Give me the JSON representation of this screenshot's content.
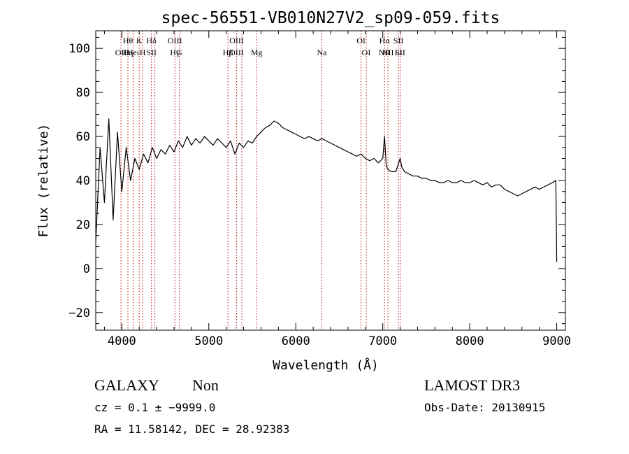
{
  "chart_data": {
    "type": "line",
    "title": "spec-56551-VB010N27V2_sp09-059.fits",
    "xlabel": "Wavelength (Å)",
    "ylabel": "Flux (relative)",
    "xlim": [
      3700,
      9100
    ],
    "ylim": [
      -28,
      108
    ],
    "xticks": [
      4000,
      5000,
      6000,
      7000,
      8000,
      9000
    ],
    "yticks": [
      -20,
      0,
      20,
      40,
      60,
      80,
      100
    ],
    "grid": false,
    "series": [
      {
        "name": "flux",
        "x": [
          3700,
          3750,
          3800,
          3850,
          3900,
          3950,
          4000,
          4050,
          4100,
          4150,
          4200,
          4250,
          4300,
          4350,
          4400,
          4450,
          4500,
          4550,
          4600,
          4650,
          4700,
          4750,
          4800,
          4850,
          4900,
          4950,
          5000,
          5050,
          5100,
          5150,
          5200,
          5250,
          5300,
          5350,
          5400,
          5450,
          5500,
          5550,
          5600,
          5650,
          5700,
          5750,
          5800,
          5850,
          5900,
          5950,
          6000,
          6050,
          6100,
          6150,
          6200,
          6250,
          6300,
          6350,
          6400,
          6450,
          6500,
          6550,
          6600,
          6650,
          6700,
          6750,
          6800,
          6850,
          6900,
          6950,
          7000,
          7020,
          7040,
          7060,
          7100,
          7150,
          7200,
          7220,
          7250,
          7300,
          7350,
          7400,
          7450,
          7500,
          7550,
          7600,
          7650,
          7700,
          7750,
          7800,
          7850,
          7900,
          7950,
          8000,
          8050,
          8100,
          8150,
          8200,
          8250,
          8300,
          8350,
          8400,
          8450,
          8500,
          8550,
          8600,
          8650,
          8700,
          8750,
          8800,
          8850,
          8900,
          8950,
          8990,
          9000
        ],
        "y": [
          12,
          55,
          30,
          68,
          22,
          62,
          35,
          55,
          40,
          50,
          45,
          52,
          48,
          55,
          50,
          54,
          52,
          56,
          53,
          58,
          55,
          60,
          56,
          59,
          57,
          60,
          58,
          56,
          59,
          57,
          55,
          58,
          52,
          57,
          55,
          58,
          57,
          60,
          62,
          64,
          65,
          67,
          66,
          64,
          63,
          62,
          61,
          60,
          59,
          60,
          59,
          58,
          59,
          58,
          57,
          56,
          55,
          54,
          53,
          52,
          51,
          52,
          50,
          49,
          50,
          48,
          50,
          60,
          47,
          45,
          44,
          44,
          50,
          46,
          44,
          43,
          42,
          42,
          41,
          41,
          40,
          40,
          39,
          39,
          40,
          39,
          39,
          40,
          39,
          39,
          40,
          39,
          38,
          39,
          37,
          38,
          38,
          36,
          35,
          34,
          33,
          34,
          35,
          36,
          37,
          36,
          37,
          38,
          39,
          40,
          3
        ],
        "color": "#000000"
      }
    ],
    "lines": [
      {
        "x": 3990,
        "labels": [
          "",
          "OII"
        ]
      },
      {
        "x": 4070,
        "labels": [
          "Hθ",
          "Hη"
        ]
      },
      {
        "x": 4130,
        "labels": [
          "",
          "Heι"
        ]
      },
      {
        "x": 4200,
        "labels": [
          "K",
          ""
        ]
      },
      {
        "x": 4240,
        "labels": [
          "",
          "H"
        ]
      },
      {
        "x": 4340,
        "labels": [
          "Hδ",
          "SII"
        ]
      },
      {
        "x": 4380,
        "labels": [
          "",
          ""
        ]
      },
      {
        "x": 4610,
        "labels": [
          "OIII",
          "Hγ"
        ]
      },
      {
        "x": 4660,
        "labels": [
          "",
          "G"
        ]
      },
      {
        "x": 5220,
        "labels": [
          "",
          "Hβ"
        ]
      },
      {
        "x": 5320,
        "labels": [
          "OIII",
          "OIII"
        ]
      },
      {
        "x": 5380,
        "labels": [
          "",
          ""
        ]
      },
      {
        "x": 5550,
        "labels": [
          "",
          "Mg"
        ]
      },
      {
        "x": 6300,
        "labels": [
          "",
          "Na"
        ]
      },
      {
        "x": 6750,
        "labels": [
          "OI",
          ""
        ]
      },
      {
        "x": 6810,
        "labels": [
          "",
          "OI"
        ]
      },
      {
        "x": 7020,
        "labels": [
          "Hα",
          "NII"
        ]
      },
      {
        "x": 7060,
        "labels": [
          "",
          "NII"
        ]
      },
      {
        "x": 7180,
        "labels": [
          "SII",
          "Li"
        ]
      },
      {
        "x": 7200,
        "labels": [
          "",
          "SII"
        ]
      }
    ],
    "line_color": "#c00000"
  },
  "info": {
    "class": "GALAXY",
    "subclass": "Non",
    "survey": "LAMOST DR3",
    "cz": "cz = 0.1 ± −9999.0",
    "obs_date": "Obs-Date: 20130915",
    "radec": "RA =  11.58142, DEC =  28.92383"
  }
}
